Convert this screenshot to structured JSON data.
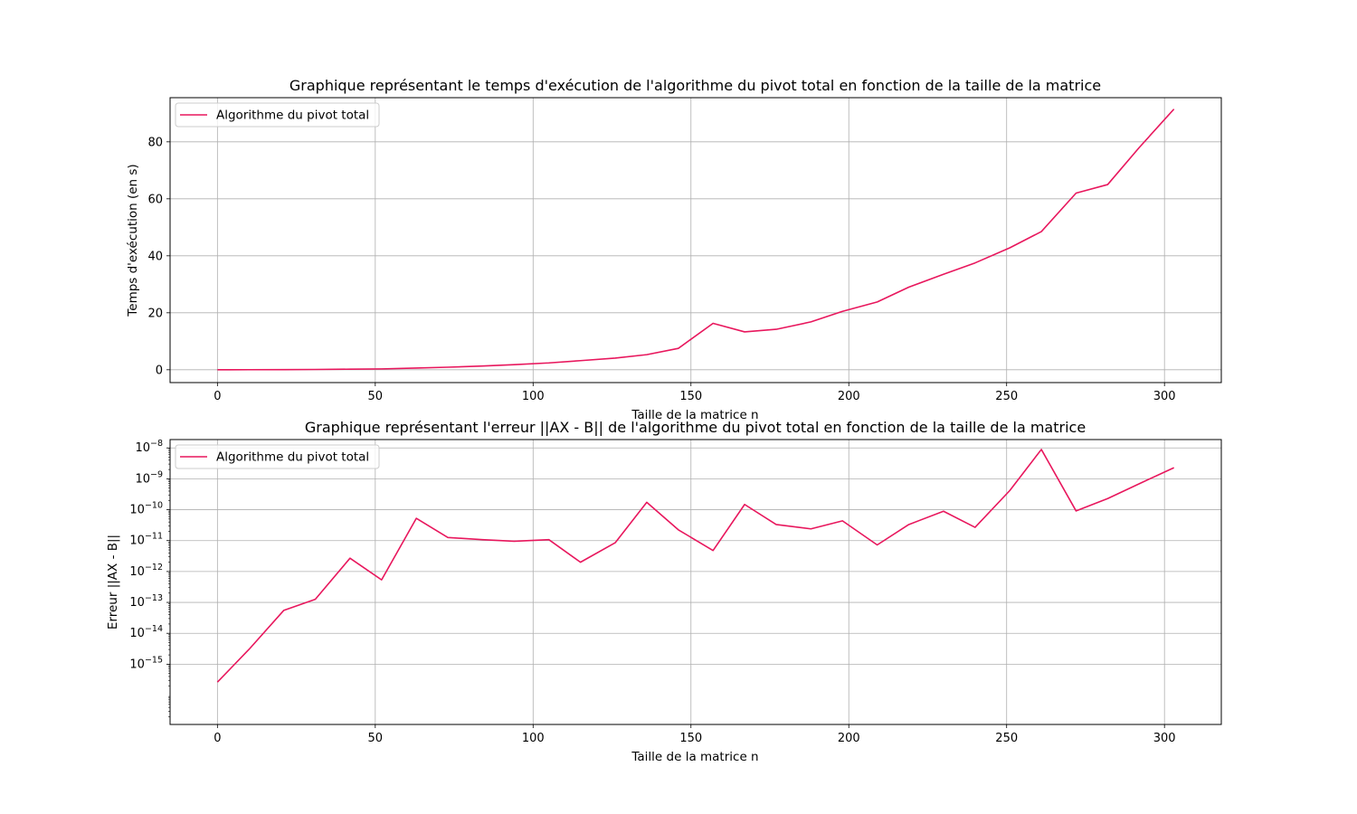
{
  "chart_data": [
    {
      "type": "line",
      "title": "Graphique représentant le temps d'exécution de l'algorithme du pivot total en fonction de la taille de la matrice",
      "xlabel": "Taille de la matrice n",
      "ylabel": "Temps d'exécution (en s)",
      "xlim": [
        -15,
        318
      ],
      "ylim": [
        -4.5,
        95.5
      ],
      "yscale": "linear",
      "xticks": [
        0,
        50,
        100,
        150,
        200,
        250,
        300
      ],
      "xtick_labels": [
        "0",
        "50",
        "100",
        "150",
        "200",
        "250",
        "300"
      ],
      "yticks": [
        0,
        20,
        40,
        60,
        80
      ],
      "ytick_labels": [
        "0",
        "20",
        "40",
        "60",
        "80"
      ],
      "grid": true,
      "legend": "upper-left",
      "series": [
        {
          "name": "Algorithme du pivot total",
          "color": "#e8175d",
          "x": [
            0,
            10,
            21,
            31,
            42,
            52,
            63,
            73,
            84,
            94,
            105,
            115,
            126,
            136,
            146,
            157,
            167,
            177,
            188,
            198,
            209,
            219,
            230,
            240,
            251,
            261,
            272,
            282,
            292,
            303
          ],
          "y": [
            0.01,
            0.02,
            0.05,
            0.1,
            0.2,
            0.3,
            0.6,
            0.9,
            1.3,
            1.8,
            2.4,
            3.2,
            4.1,
            5.3,
            7.5,
            16.3,
            13.3,
            14.2,
            16.8,
            20.5,
            23.8,
            29,
            33.5,
            37.5,
            42.8,
            48.5,
            62,
            65,
            78,
            91.5
          ]
        }
      ]
    },
    {
      "type": "line",
      "title": "Graphique représentant l'erreur ||AX - B|| de l'algorithme du pivot total en fonction de la taille de la matrice",
      "xlabel": "Taille de la matrice n",
      "ylabel": "Erreur ||AX - B||",
      "xlim": [
        -15,
        318
      ],
      "ylim_log10": [
        -16.95,
        -7.73
      ],
      "yscale": "log",
      "xticks": [
        0,
        50,
        100,
        150,
        200,
        250,
        300
      ],
      "xtick_labels": [
        "0",
        "50",
        "100",
        "150",
        "200",
        "250",
        "300"
      ],
      "yticks_log10": [
        -15,
        -14,
        -13,
        -12,
        -11,
        -10,
        -9,
        -8
      ],
      "ytick_base": "10",
      "ytick_exponents": [
        "−15",
        "−14",
        "−13",
        "−12",
        "−11",
        "−10",
        "−9",
        "−8"
      ],
      "grid": true,
      "legend": "upper-left",
      "series": [
        {
          "name": "Algorithme du pivot total",
          "color": "#e8175d",
          "x": [
            0,
            10,
            21,
            31,
            42,
            52,
            63,
            73,
            84,
            94,
            105,
            115,
            126,
            136,
            146,
            157,
            167,
            177,
            188,
            198,
            209,
            219,
            230,
            240,
            251,
            261,
            272,
            282,
            292,
            303
          ],
          "log10_y": [
            -15.58,
            -14.52,
            -13.26,
            -12.9,
            -11.57,
            -12.27,
            -10.28,
            -10.9,
            -10.97,
            -11.02,
            -10.97,
            -11.7,
            -11.07,
            -9.76,
            -10.65,
            -11.32,
            -9.83,
            -10.48,
            -10.62,
            -10.36,
            -11.14,
            -10.48,
            -10.05,
            -10.57,
            -9.38,
            -8.05,
            -10.04,
            -9.64,
            -9.16,
            -8.64
          ]
        }
      ]
    }
  ]
}
